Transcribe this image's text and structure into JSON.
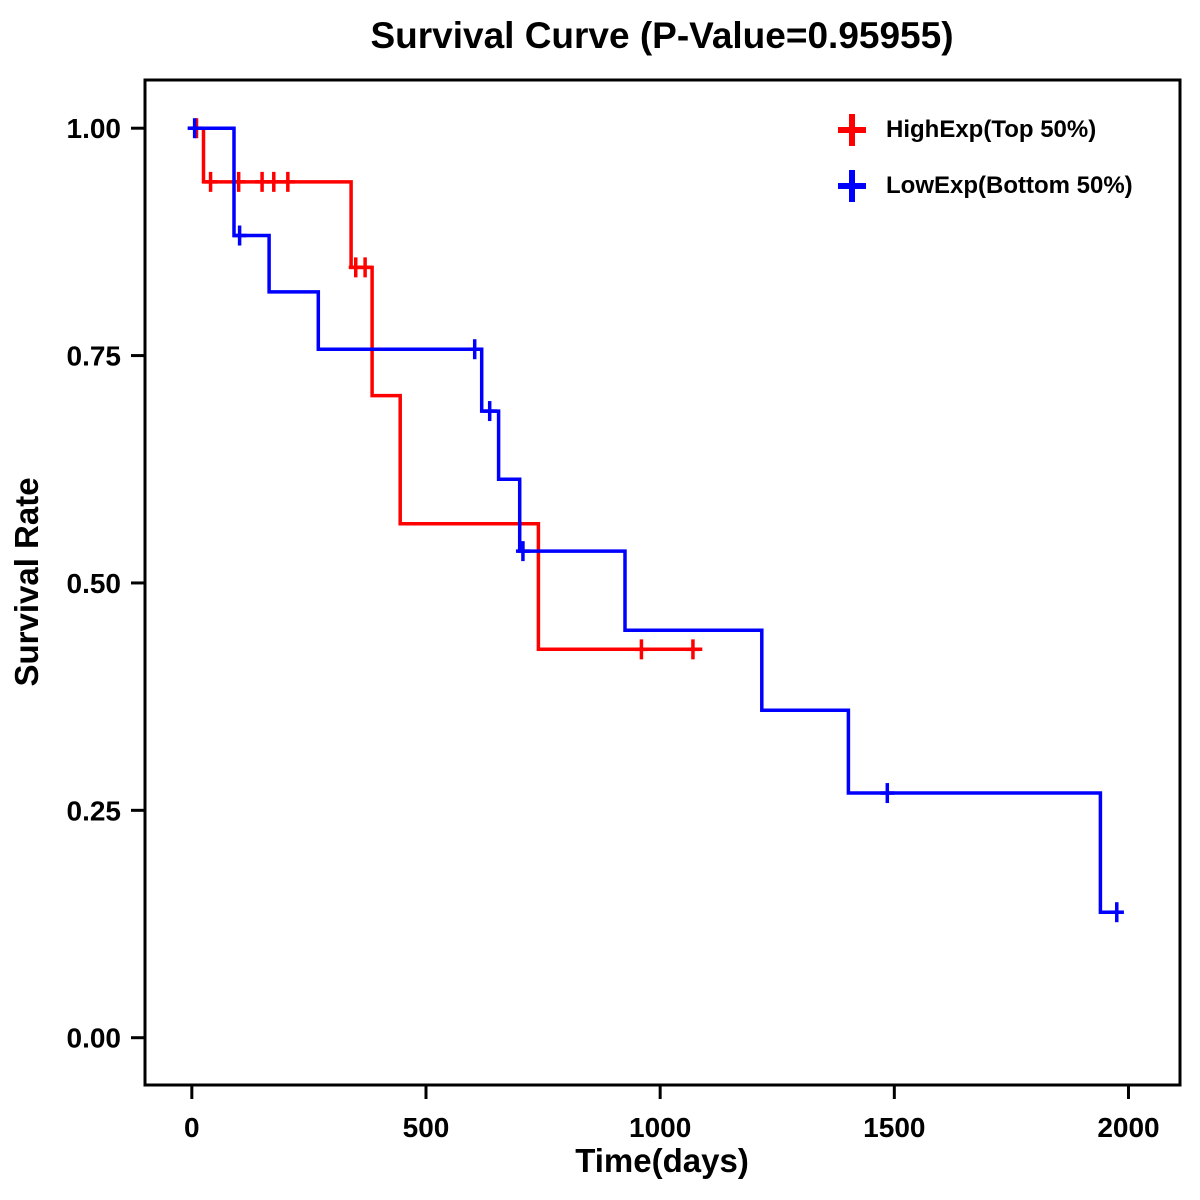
{
  "p_value": "0.95955",
  "chart_data": {
    "type": "line",
    "subtype": "kaplan-meier-step-survival",
    "title": "Survival Curve (P-Value=0.95955)",
    "xlabel": "Time(days)",
    "ylabel": "Survival Rate",
    "xlim": [
      -100,
      2110
    ],
    "ylim": [
      -0.052,
      1.053
    ],
    "grid": false,
    "legend_position": "top-right-inside",
    "xticks": [
      {
        "value": 0,
        "label": "0"
      },
      {
        "value": 500,
        "label": "500"
      },
      {
        "value": 1000,
        "label": "1000"
      },
      {
        "value": 1500,
        "label": "1500"
      },
      {
        "value": 2000,
        "label": "2000"
      }
    ],
    "yticks": [
      {
        "value": 0.0,
        "label": "0.00"
      },
      {
        "value": 0.25,
        "label": "0.25"
      },
      {
        "value": 0.5,
        "label": "0.50"
      },
      {
        "value": 0.75,
        "label": "0.75"
      },
      {
        "value": 1.0,
        "label": "1.00"
      }
    ],
    "series": [
      {
        "name": "HighExp(Top 50%)",
        "color": "#FF0000",
        "points": [
          [
            0,
            1.0
          ],
          [
            25,
            1.0
          ],
          [
            25,
            0.941
          ],
          [
            340,
            0.941
          ],
          [
            340,
            0.847
          ],
          [
            385,
            0.847
          ],
          [
            385,
            0.706
          ],
          [
            445,
            0.706
          ],
          [
            445,
            0.565
          ],
          [
            740,
            0.565
          ],
          [
            740,
            0.427
          ],
          [
            1090,
            0.427
          ]
        ],
        "censors": [
          [
            10,
            1.0
          ],
          [
            40,
            0.941
          ],
          [
            100,
            0.941
          ],
          [
            150,
            0.941
          ],
          [
            175,
            0.941
          ],
          [
            205,
            0.941
          ],
          [
            350,
            0.847
          ],
          [
            370,
            0.847
          ],
          [
            960,
            0.427
          ],
          [
            1070,
            0.427
          ]
        ]
      },
      {
        "name": "LowExp(Bottom 50%)",
        "color": "#0000FF",
        "points": [
          [
            0,
            1.0
          ],
          [
            90,
            1.0
          ],
          [
            90,
            0.882
          ],
          [
            165,
            0.882
          ],
          [
            165,
            0.82
          ],
          [
            270,
            0.82
          ],
          [
            270,
            0.757
          ],
          [
            619,
            0.757
          ],
          [
            619,
            0.689
          ],
          [
            655,
            0.689
          ],
          [
            655,
            0.614
          ],
          [
            700,
            0.614
          ],
          [
            700,
            0.535
          ],
          [
            925,
            0.535
          ],
          [
            925,
            0.448
          ],
          [
            1217,
            0.448
          ],
          [
            1217,
            0.36
          ],
          [
            1402,
            0.36
          ],
          [
            1402,
            0.269
          ],
          [
            1940,
            0.269
          ],
          [
            1940,
            0.138
          ],
          [
            1990,
            0.138
          ]
        ],
        "censors": [
          [
            6,
            1.0
          ],
          [
            102,
            0.882
          ],
          [
            604,
            0.757
          ],
          [
            636,
            0.689
          ],
          [
            707,
            0.535
          ],
          [
            1485,
            0.269
          ],
          [
            1975,
            0.138
          ]
        ]
      }
    ]
  }
}
